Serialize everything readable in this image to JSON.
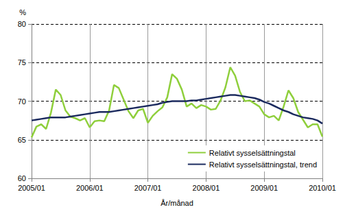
{
  "chart_data": {
    "type": "line",
    "x_label": "År/månad",
    "y_label": "%",
    "categories": [
      "2005/01",
      null,
      null,
      null,
      null,
      null,
      null,
      null,
      null,
      null,
      null,
      null,
      "2006/01",
      null,
      null,
      null,
      null,
      null,
      null,
      null,
      null,
      null,
      null,
      null,
      "2007/01",
      null,
      null,
      null,
      null,
      null,
      null,
      null,
      null,
      null,
      null,
      null,
      "2008/01",
      null,
      null,
      null,
      null,
      null,
      null,
      null,
      null,
      null,
      null,
      null,
      "2009/01",
      null,
      null,
      null,
      null,
      null,
      null,
      null,
      null,
      null,
      null,
      null,
      "2010/01"
    ],
    "series": [
      {
        "name": "Relativt sysselsättningstal",
        "color": "#8fcf3c",
        "values": [
          65.3,
          66.7,
          67.0,
          66.4,
          68.5,
          71.5,
          70.8,
          68.8,
          68.0,
          67.8,
          67.5,
          67.8,
          66.6,
          67.4,
          67.5,
          67.4,
          68.8,
          72.1,
          71.7,
          70.2,
          68.7,
          67.8,
          68.8,
          69.0,
          67.2,
          68.1,
          68.7,
          69.2,
          70.5,
          73.5,
          72.9,
          71.5,
          69.3,
          69.7,
          69.1,
          69.5,
          69.3,
          68.9,
          69.0,
          70.1,
          71.8,
          74.4,
          73.3,
          71.2,
          70.0,
          70.1,
          69.7,
          69.3,
          68.3,
          67.9,
          68.1,
          67.5,
          69.3,
          71.4,
          70.4,
          68.6,
          67.6,
          66.6,
          67.0,
          67.0,
          65.4
        ]
      },
      {
        "name": "Relativt sysselsättningstal, trend",
        "color": "#1b2a5e",
        "values": [
          67.5,
          67.6,
          67.7,
          67.8,
          67.9,
          67.9,
          67.9,
          67.9,
          68.0,
          68.1,
          68.2,
          68.3,
          68.4,
          68.5,
          68.6,
          68.6,
          68.6,
          68.7,
          68.8,
          68.9,
          69.0,
          69.1,
          69.2,
          69.3,
          69.4,
          69.5,
          69.6,
          69.8,
          69.9,
          70.0,
          70.0,
          70.0,
          70.0,
          70.1,
          70.1,
          70.2,
          70.3,
          70.4,
          70.5,
          70.6,
          70.7,
          70.8,
          70.8,
          70.7,
          70.6,
          70.5,
          70.4,
          70.2,
          69.9,
          69.7,
          69.4,
          69.1,
          68.8,
          68.6,
          68.3,
          68.1,
          67.9,
          67.8,
          67.7,
          67.5,
          67.1
        ]
      }
    ],
    "ylim": [
      60,
      80
    ],
    "yticks": [
      60,
      65,
      70,
      75,
      80
    ],
    "grid": true,
    "legend": "lower right"
  }
}
